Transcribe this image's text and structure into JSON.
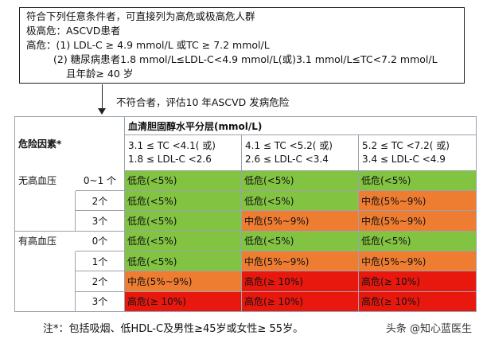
{
  "criteria": {
    "lines": [
      "符合下列任意条件者，可直接列为高危或极高危人群",
      "极高危：ASCVD患者",
      "高危：(1) LDL-C ≥ 4.9 mmol/L 或TC ≥ 7.2 mmol/L",
      "(2) 糖尿病患者1.8 mmol/L≤LDL-C<4.9 mmol/L(或)3.1 mmol/L≤TC<7.2 mmol/L",
      "且年龄≥ 40 岁"
    ]
  },
  "arrow_label": "不符合者，评估10 年ASCVD 发病危险",
  "table": {
    "main_header": "血清胆固醇水平分层(mmol/L)",
    "factor_header": "危险因素*",
    "ranges": [
      {
        "tc": "3.1 ≤ TC <4.1( 或)",
        "ldl": "1.8 ≤ LDL-C <2.6"
      },
      {
        "tc": "4.1 ≤ TC <5.2( 或)",
        "ldl": "2.6 ≤ LDL-C <3.4"
      },
      {
        "tc": "5.2 ≤ TC <7.2( 或)",
        "ldl": "3.4 ≤ LDL-C <4.9"
      }
    ],
    "groups": [
      {
        "label": "无高血压",
        "rows": [
          {
            "count": "0~1 个",
            "cells": [
              {
                "text": "低危(<5%)",
                "level": "low"
              },
              {
                "text": "低危(<5%)",
                "level": "low"
              },
              {
                "text": "低危(<5%)",
                "level": "low"
              }
            ]
          },
          {
            "count": "2个",
            "cells": [
              {
                "text": "低危(<5%)",
                "level": "low"
              },
              {
                "text": "低危(<5%)",
                "level": "low"
              },
              {
                "text": "中危(5%~9%)",
                "level": "mid"
              }
            ]
          },
          {
            "count": "3个",
            "cells": [
              {
                "text": "低危(<5%)",
                "level": "low"
              },
              {
                "text": "中危(5%~9%)",
                "level": "mid"
              },
              {
                "text": "中危(5%~9%)",
                "level": "mid"
              }
            ]
          }
        ]
      },
      {
        "label": "有高血压",
        "rows": [
          {
            "count": "0个",
            "cells": [
              {
                "text": "低危(<5%)",
                "level": "low"
              },
              {
                "text": "低危(<5%)",
                "level": "low"
              },
              {
                "text": "低危(<5%)",
                "level": "low"
              }
            ]
          },
          {
            "count": "1个",
            "cells": [
              {
                "text": "低危(<5%)",
                "level": "low"
              },
              {
                "text": "中危(5%~9%)",
                "level": "mid"
              },
              {
                "text": "中危(5%~9%)",
                "level": "mid"
              }
            ]
          },
          {
            "count": "2个",
            "cells": [
              {
                "text": "中危(5%~9%)",
                "level": "mid"
              },
              {
                "text": "高危(≥ 10%)",
                "level": "high"
              },
              {
                "text": "高危(≥ 10%)",
                "level": "high"
              }
            ]
          },
          {
            "count": "3个",
            "cells": [
              {
                "text": "高危(≥ 10%)",
                "level": "high"
              },
              {
                "text": "高危(≥ 10%)",
                "level": "high"
              },
              {
                "text": "高危(≥ 10%)",
                "level": "high"
              }
            ]
          }
        ]
      }
    ]
  },
  "colors": {
    "low": "#82c342",
    "mid": "#ee7d31",
    "high": "#e8180f"
  },
  "footnote": "注*：包括吸烟、低HDL-C及男性≥45岁或女性≥ 55岁。",
  "watermark": "头条 @知心蓝医生"
}
